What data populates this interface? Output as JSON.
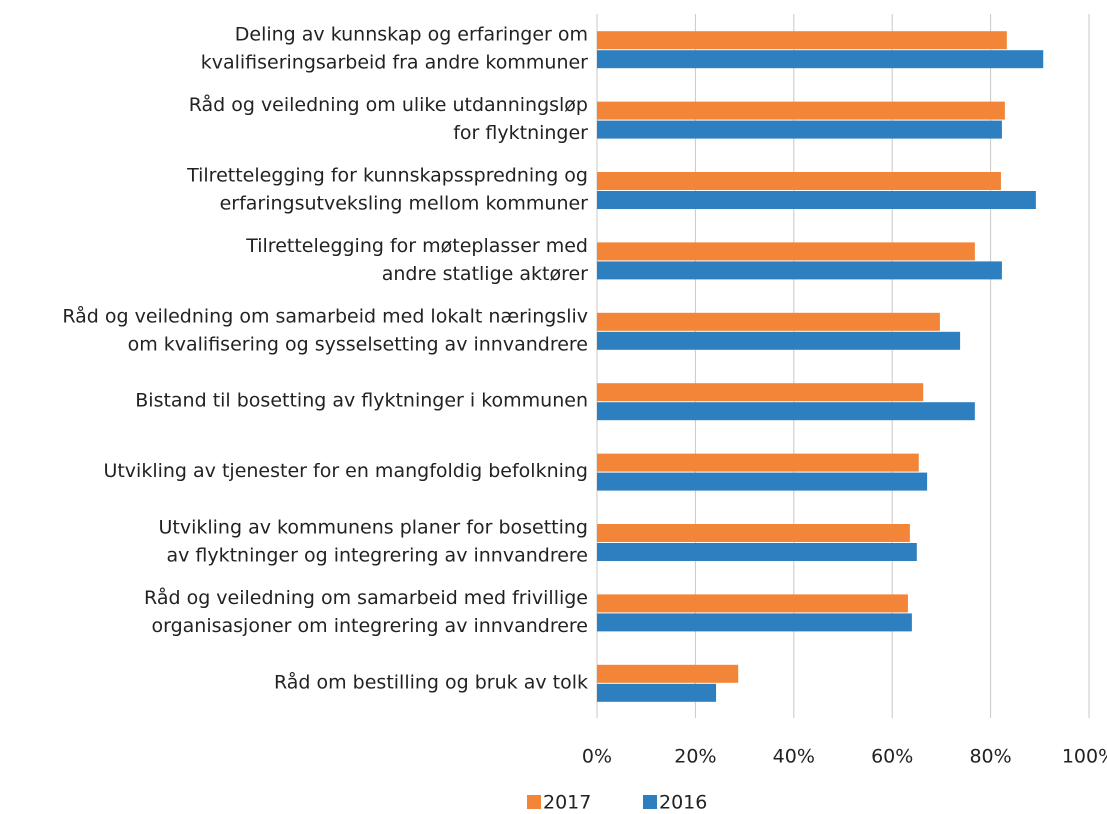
{
  "chart_data": {
    "type": "barh",
    "categories": [
      [
        "Deling av kunnskap og erfaringer om",
        "kvalifiseringsarbeid fra andre kommuner"
      ],
      [
        "Råd og veiledning om ulike utdanningsløp",
        "for flyktninger"
      ],
      [
        "Tilrettelegging for kunnskapsspredning og",
        "erfaringsutveksling mellom kommuner"
      ],
      [
        "Tilrettelegging for møteplasser med",
        "andre statlige aktører"
      ],
      [
        "Råd og veiledning om samarbeid med lokalt næringsliv",
        "om kvalifisering og sysselsetting av innvandrere"
      ],
      [
        "Bistand til bosetting av flyktninger i kommunen"
      ],
      [
        "Utvikling av tjenester for en mangfoldig befolkning"
      ],
      [
        "Utvikling av kommunens planer for bosetting",
        "av flyktninger og integrering av innvandrere"
      ],
      [
        "Råd og veiledning om samarbeid med frivillige",
        "organisasjoner om integrering av innvandrere"
      ],
      [
        "Råd om bestilling og bruk av tolk"
      ]
    ],
    "series": [
      {
        "name": "2017",
        "color": "#f28538",
        "values": [
          83.3,
          82.9,
          82.1,
          76.8,
          69.7,
          66.3,
          65.4,
          63.6,
          63.2,
          28.7
        ]
      },
      {
        "name": "2016",
        "color": "#2e7fc0",
        "values": [
          90.7,
          82.3,
          89.2,
          82.3,
          73.8,
          76.8,
          67.1,
          65.0,
          64.0,
          24.2
        ]
      }
    ],
    "xlim": [
      0,
      100
    ],
    "xticks": [
      {
        "value": 0,
        "label": "0%"
      },
      {
        "value": 20,
        "label": "20%"
      },
      {
        "value": 40,
        "label": "40%"
      },
      {
        "value": 60,
        "label": "60%"
      },
      {
        "value": 80,
        "label": "80%"
      },
      {
        "value": 100,
        "label": "100%"
      }
    ],
    "grid": true,
    "legend": "bottom"
  }
}
